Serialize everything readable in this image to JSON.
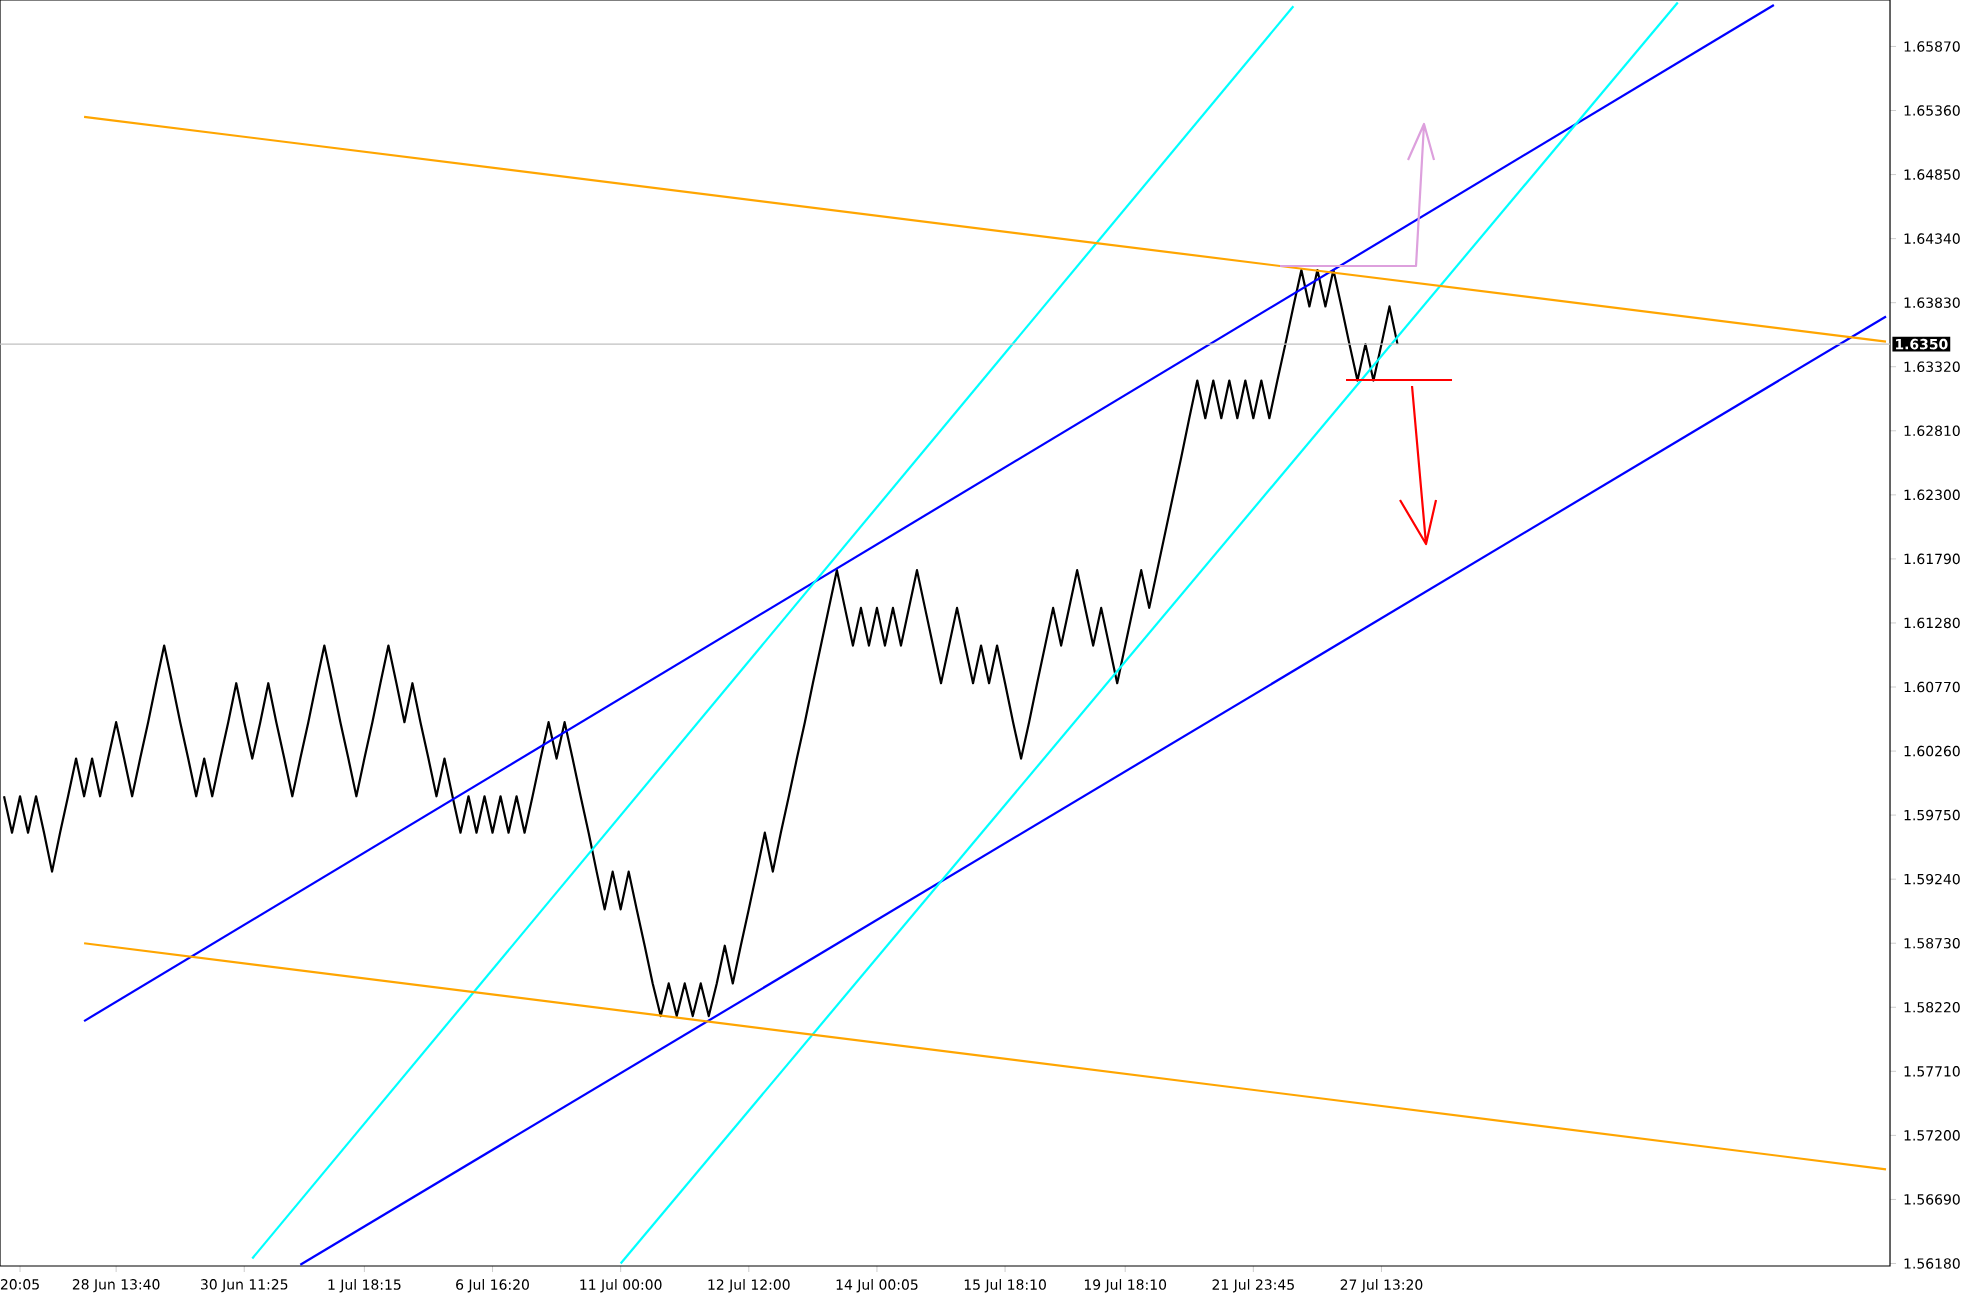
{
  "chart_data": {
    "type": "line",
    "categories": [
      null,
      null,
      "20:05",
      null,
      null,
      null,
      null,
      null,
      null,
      null,
      null,
      null,
      null,
      null,
      "28 Jun 13:40",
      null,
      null,
      null,
      null,
      null,
      null,
      null,
      null,
      null,
      null,
      null,
      null,
      null,
      null,
      null,
      "30 Jun 11:25",
      null,
      null,
      null,
      null,
      null,
      null,
      null,
      null,
      null,
      null,
      null,
      null,
      null,
      null,
      "1 Jul 18:15",
      null,
      null,
      null,
      null,
      null,
      null,
      null,
      null,
      null,
      null,
      null,
      null,
      null,
      null,
      null,
      "6 Jul 16:20",
      null,
      null,
      null,
      null,
      null,
      null,
      null,
      null,
      null,
      null,
      null,
      null,
      null,
      null,
      null,
      "11 Jul 00:00",
      null,
      null,
      null,
      null,
      null,
      null,
      null,
      null,
      null,
      null,
      null,
      null,
      null,
      null,
      null,
      "12 Jul 12:00",
      null,
      null,
      null,
      null,
      null,
      null,
      null,
      null,
      null,
      null,
      null,
      null,
      null,
      null,
      null,
      "14 Jul 00:05",
      null,
      null,
      null,
      null,
      null,
      null,
      null,
      null,
      null,
      null,
      null,
      null,
      null,
      null,
      null,
      "15 Jul 18:10",
      null,
      null,
      null,
      null,
      null,
      null,
      null,
      null,
      null,
      null,
      null,
      null,
      null,
      null,
      "19 Jul 18:10",
      null,
      null,
      null,
      null,
      null,
      null,
      null,
      null,
      null,
      null,
      null,
      null,
      null,
      null,
      null,
      "21 Jul 23:45",
      null,
      null,
      null,
      null,
      null,
      null,
      null,
      null,
      null,
      null,
      null,
      null,
      null,
      null,
      null,
      "27 Jul 13:20",
      null,
      null,
      null,
      null,
      null,
      null,
      null,
      null,
      null,
      null,
      null,
      null,
      null,
      null,
      null,
      null,
      null,
      null,
      null,
      null,
      null,
      null,
      null,
      null,
      null,
      null,
      null,
      null,
      null,
      null,
      null,
      null,
      null,
      null,
      null,
      null,
      null,
      null,
      null,
      null,
      null,
      null,
      null,
      null,
      null,
      null,
      null,
      null,
      null,
      null,
      null,
      null,
      null,
      null,
      null,
      null,
      null,
      null,
      null,
      null,
      null,
      null,
      null
    ],
    "ylim": [
      1.5616,
      1.6624
    ],
    "yticks": [
      {
        "value": 1.5618,
        "label": "1.56180"
      },
      {
        "value": 1.5669,
        "label": "1.56690"
      },
      {
        "value": 1.572,
        "label": "1.57200"
      },
      {
        "value": 1.5771,
        "label": "1.57710"
      },
      {
        "value": 1.5822,
        "label": "1.58220"
      },
      {
        "value": 1.5873,
        "label": "1.58730"
      },
      {
        "value": 1.5924,
        "label": "1.59240"
      },
      {
        "value": 1.5975,
        "label": "1.59750"
      },
      {
        "value": 1.6026,
        "label": "1.60260"
      },
      {
        "value": 1.6077,
        "label": "1.60770"
      },
      {
        "value": 1.6128,
        "label": "1.61280"
      },
      {
        "value": 1.6179,
        "label": "1.61790"
      },
      {
        "value": 1.623,
        "label": "1.62300"
      },
      {
        "value": 1.6281,
        "label": "1.62810"
      },
      {
        "value": 1.6332,
        "label": "1.63320"
      },
      {
        "value": 1.6383,
        "label": "1.63830"
      },
      {
        "value": 1.6434,
        "label": "1.64340"
      },
      {
        "value": 1.6485,
        "label": "1.64850"
      },
      {
        "value": 1.6536,
        "label": "1.65360"
      },
      {
        "value": 1.6587,
        "label": "1.65870"
      }
    ],
    "grid": false,
    "ref_lines": [
      {
        "axis": "y",
        "value": 1.635,
        "label": "1.6350",
        "color": "#c0c0c0"
      }
    ],
    "series": [
      {
        "color": "#000000",
        "values": [
          1.599,
          1.5961,
          1.599,
          1.5961,
          1.599,
          1.5961,
          1.593,
          1.5961,
          1.599,
          1.602,
          1.599,
          1.602,
          1.599,
          1.602,
          1.6049,
          1.602,
          1.599,
          1.602,
          1.6049,
          1.608,
          1.611,
          1.608,
          1.6049,
          1.602,
          1.599,
          1.602,
          1.599,
          1.602,
          1.6049,
          1.608,
          1.6049,
          1.602,
          1.6049,
          1.608,
          1.6049,
          1.602,
          1.599,
          1.602,
          1.6049,
          1.608,
          1.611,
          1.608,
          1.6049,
          1.602,
          1.599,
          1.602,
          1.6049,
          1.608,
          1.611,
          1.608,
          1.6049,
          1.608,
          1.6049,
          1.602,
          1.599,
          1.602,
          1.599,
          1.5961,
          1.599,
          1.5961,
          1.599,
          1.5961,
          1.599,
          1.5961,
          1.599,
          1.5961,
          1.599,
          1.602,
          1.6049,
          1.602,
          1.6049,
          1.602,
          1.599,
          1.5961,
          1.593,
          1.59,
          1.593,
          1.59,
          1.593,
          1.59,
          1.5871,
          1.5841,
          1.5815,
          1.5841,
          1.5815,
          1.5841,
          1.5815,
          1.5841,
          1.5815,
          1.5841,
          1.5871,
          1.5841,
          1.5871,
          1.59,
          1.593,
          1.5961,
          1.593,
          1.5961,
          1.599,
          1.602,
          1.6049,
          1.608,
          1.611,
          1.614,
          1.617,
          1.614,
          1.611,
          1.614,
          1.611,
          1.614,
          1.611,
          1.614,
          1.611,
          1.614,
          1.617,
          1.614,
          1.611,
          1.608,
          1.611,
          1.614,
          1.611,
          1.608,
          1.611,
          1.608,
          1.611,
          1.608,
          1.6049,
          1.602,
          1.6049,
          1.608,
          1.611,
          1.614,
          1.611,
          1.614,
          1.617,
          1.614,
          1.611,
          1.614,
          1.611,
          1.608,
          1.611,
          1.614,
          1.617,
          1.614,
          1.617,
          1.62,
          1.623,
          1.626,
          1.6291,
          1.6321,
          1.6291,
          1.6321,
          1.6291,
          1.6321,
          1.6291,
          1.6321,
          1.6291,
          1.6321,
          1.6291,
          1.6321,
          1.635,
          1.638,
          1.6409,
          1.638,
          1.6409,
          1.638,
          1.6409,
          1.638,
          1.635,
          1.6321,
          1.635,
          1.6321,
          1.635,
          1.638,
          1.635,
          null,
          null,
          null,
          null,
          null,
          null,
          null,
          null,
          null,
          null,
          null,
          null,
          null,
          null,
          null,
          null,
          null,
          null,
          null,
          null,
          null,
          null,
          null,
          null,
          null,
          null,
          null,
          null,
          null,
          null,
          null,
          null,
          null,
          null,
          null,
          null,
          null,
          null,
          null,
          null,
          null,
          null,
          null,
          null,
          null,
          null,
          null,
          null,
          null,
          null,
          null,
          null,
          null,
          null,
          null,
          null,
          null,
          null,
          null,
          null,
          null
        ]
      },
      {
        "color": "#0000ff",
        "values": [
          null,
          null,
          null,
          null,
          null,
          null,
          null,
          null,
          null,
          null,
          1.5811,
          null,
          null,
          null,
          null,
          null,
          null,
          null,
          null,
          null,
          null,
          null,
          null,
          null,
          null,
          null,
          null,
          null,
          null,
          null,
          null,
          null,
          null,
          null,
          null,
          null,
          null,
          null,
          null,
          null,
          null,
          null,
          null,
          null,
          null,
          null,
          null,
          null,
          null,
          null,
          null,
          null,
          null,
          null,
          null,
          null,
          null,
          null,
          null,
          null,
          null,
          null,
          null,
          null,
          null,
          null,
          null,
          null,
          null,
          null,
          null,
          null,
          null,
          null,
          null,
          null,
          null,
          null,
          null,
          null,
          null,
          null,
          null,
          null,
          null,
          null,
          null,
          null,
          null,
          null,
          null,
          null,
          null,
          null,
          null,
          null,
          null,
          null,
          null,
          null,
          null,
          null,
          null,
          null,
          null,
          null,
          null,
          null,
          null,
          null,
          null,
          null,
          null,
          null,
          null,
          null,
          null,
          null,
          null,
          null,
          null,
          null,
          null,
          null,
          null,
          null,
          null,
          null,
          null,
          null,
          null,
          null,
          null,
          null,
          null,
          null,
          null,
          null,
          null,
          null,
          null,
          null,
          null,
          null,
          null,
          null,
          null,
          null,
          null,
          null,
          null,
          null,
          null,
          null,
          null,
          null,
          null,
          null,
          null,
          null,
          null,
          null,
          null,
          null,
          null,
          null,
          null,
          null,
          null,
          null,
          null,
          null,
          null,
          null,
          null,
          null,
          null,
          null,
          null,
          null,
          null,
          null,
          null,
          null,
          null,
          null,
          null,
          null,
          null,
          null,
          null,
          null,
          null,
          null,
          null,
          null,
          null,
          null,
          null,
          null,
          null,
          null,
          null,
          null,
          null,
          null,
          null,
          null,
          null,
          null,
          null,
          null,
          null,
          null,
          null,
          null,
          null,
          null,
          null,
          null,
          null,
          1.662,
          null,
          null,
          null,
          null,
          null,
          null,
          null,
          null,
          null,
          null,
          null,
          null,
          null,
          null
        ]
      },
      {
        "color": "#0000ff",
        "values": [
          null,
          null,
          null,
          null,
          null,
          null,
          null,
          null,
          null,
          null,
          null,
          null,
          null,
          null,
          null,
          null,
          null,
          null,
          null,
          null,
          null,
          null,
          null,
          null,
          null,
          null,
          null,
          null,
          null,
          null,
          null,
          null,
          null,
          null,
          null,
          null,
          null,
          1.5617,
          null,
          null,
          null,
          null,
          null,
          null,
          null,
          null,
          null,
          null,
          null,
          null,
          null,
          null,
          null,
          null,
          null,
          null,
          null,
          null,
          null,
          null,
          null,
          null,
          null,
          null,
          null,
          null,
          null,
          null,
          null,
          null,
          null,
          null,
          null,
          null,
          null,
          null,
          null,
          null,
          null,
          null,
          null,
          null,
          null,
          null,
          null,
          null,
          null,
          null,
          null,
          null,
          null,
          null,
          null,
          null,
          null,
          null,
          null,
          null,
          null,
          null,
          null,
          null,
          null,
          null,
          null,
          null,
          null,
          null,
          null,
          null,
          null,
          null,
          null,
          null,
          null,
          null,
          null,
          null,
          null,
          null,
          null,
          null,
          null,
          null,
          null,
          null,
          null,
          null,
          null,
          null,
          null,
          null,
          null,
          null,
          null,
          null,
          null,
          null,
          null,
          null,
          null,
          null,
          null,
          null,
          null,
          null,
          null,
          null,
          null,
          null,
          null,
          null,
          null,
          null,
          null,
          null,
          null,
          null,
          null,
          null,
          null,
          null,
          null,
          null,
          null,
          null,
          null,
          null,
          null,
          null,
          null,
          null,
          null,
          null,
          null,
          null,
          null,
          null,
          null,
          null,
          null,
          null,
          null,
          null,
          null,
          null,
          null,
          null,
          null,
          null,
          null,
          null,
          null,
          null,
          null,
          null,
          null,
          null,
          null,
          null,
          null,
          null,
          null,
          null,
          null,
          null,
          null,
          null,
          null,
          null,
          null,
          null,
          null,
          null,
          null,
          null,
          null,
          null,
          null,
          null,
          null,
          null,
          null,
          null,
          null,
          null,
          null,
          null,
          null,
          null,
          null,
          null,
          null,
          null,
          null,
          1.6372
        ]
      },
      {
        "color": "#00ffff",
        "values": [
          null,
          null,
          null,
          null,
          null,
          null,
          null,
          null,
          null,
          null,
          null,
          null,
          null,
          null,
          null,
          null,
          null,
          null,
          null,
          null,
          null,
          null,
          null,
          null,
          null,
          null,
          null,
          null,
          null,
          null,
          null,
          1.5622,
          null,
          null,
          null,
          null,
          null,
          null,
          null,
          null,
          null,
          null,
          null,
          null,
          null,
          null,
          null,
          null,
          null,
          null,
          null,
          null,
          null,
          null,
          null,
          null,
          null,
          null,
          null,
          null,
          null,
          null,
          null,
          null,
          null,
          null,
          null,
          null,
          null,
          null,
          null,
          null,
          null,
          null,
          null,
          null,
          null,
          null,
          null,
          null,
          null,
          null,
          null,
          null,
          null,
          null,
          null,
          null,
          null,
          null,
          null,
          null,
          null,
          null,
          null,
          null,
          null,
          null,
          null,
          null,
          null,
          null,
          null,
          null,
          null,
          null,
          null,
          null,
          null,
          null,
          null,
          null,
          null,
          null,
          null,
          null,
          null,
          null,
          null,
          null,
          null,
          null,
          null,
          null,
          null,
          null,
          null,
          null,
          null,
          null,
          null,
          null,
          null,
          null,
          null,
          null,
          null,
          null,
          null,
          null,
          null,
          null,
          null,
          null,
          null,
          null,
          null,
          null,
          null,
          null,
          null,
          null,
          null,
          null,
          null,
          null,
          null,
          null,
          null,
          null,
          null,
          1.6619,
          null,
          null,
          null,
          null,
          null,
          null,
          null,
          null,
          null,
          null,
          null,
          null,
          null,
          null,
          null,
          null,
          null,
          null,
          null,
          null,
          null,
          null,
          null,
          null,
          null,
          null,
          null,
          null,
          null,
          null,
          null,
          null,
          null,
          null,
          null,
          null,
          null,
          null,
          null,
          null,
          null,
          null,
          null,
          null,
          null,
          null,
          null,
          null,
          null,
          null,
          null,
          null,
          null,
          null,
          null,
          null,
          null,
          null,
          null,
          null,
          null,
          null,
          null,
          null,
          null,
          null,
          null,
          null,
          null,
          null,
          null,
          null,
          null,
          null
        ]
      },
      {
        "color": "#00ffff",
        "values": [
          null,
          null,
          null,
          null,
          null,
          null,
          null,
          null,
          null,
          null,
          null,
          null,
          null,
          null,
          null,
          null,
          null,
          null,
          null,
          null,
          null,
          null,
          null,
          null,
          null,
          null,
          null,
          null,
          null,
          null,
          null,
          null,
          null,
          null,
          null,
          null,
          null,
          null,
          null,
          null,
          null,
          null,
          null,
          null,
          null,
          null,
          null,
          null,
          null,
          null,
          null,
          null,
          null,
          null,
          null,
          null,
          null,
          null,
          null,
          null,
          null,
          null,
          null,
          null,
          null,
          null,
          null,
          null,
          null,
          null,
          null,
          null,
          null,
          null,
          null,
          null,
          null,
          1.5618,
          null,
          null,
          null,
          null,
          null,
          null,
          null,
          null,
          null,
          null,
          null,
          null,
          null,
          null,
          null,
          null,
          null,
          null,
          null,
          null,
          null,
          null,
          null,
          null,
          null,
          null,
          null,
          null,
          null,
          null,
          null,
          null,
          null,
          null,
          null,
          null,
          null,
          null,
          null,
          null,
          null,
          null,
          null,
          null,
          null,
          null,
          null,
          null,
          null,
          null,
          null,
          null,
          null,
          null,
          null,
          null,
          null,
          null,
          null,
          null,
          null,
          null,
          null,
          null,
          null,
          null,
          null,
          null,
          null,
          null,
          null,
          null,
          null,
          null,
          null,
          null,
          null,
          null,
          null,
          null,
          null,
          null,
          null,
          null,
          null,
          null,
          null,
          null,
          null,
          null,
          null,
          null,
          null,
          null,
          null,
          null,
          null,
          null,
          null,
          null,
          null,
          null,
          null,
          null,
          null,
          null,
          null,
          null,
          null,
          null,
          null,
          null,
          null,
          null,
          null,
          null,
          null,
          null,
          null,
          null,
          null,
          null,
          null,
          null,
          null,
          null,
          null,
          null,
          null,
          null,
          null,
          1.6622,
          null,
          null,
          null,
          null,
          null,
          null,
          null,
          null,
          null,
          null,
          null,
          null,
          null,
          null,
          null,
          null,
          null,
          null,
          null,
          null,
          null,
          null,
          null,
          null,
          null,
          null
        ]
      },
      {
        "color": "#ffa500",
        "values": [
          null,
          null,
          null,
          null,
          null,
          null,
          null,
          null,
          null,
          null,
          1.6531,
          null,
          null,
          null,
          null,
          null,
          null,
          null,
          null,
          null,
          null,
          null,
          null,
          null,
          null,
          null,
          null,
          null,
          null,
          null,
          null,
          null,
          null,
          null,
          null,
          null,
          null,
          null,
          null,
          null,
          null,
          null,
          null,
          null,
          null,
          null,
          null,
          null,
          null,
          null,
          null,
          null,
          null,
          null,
          null,
          null,
          null,
          null,
          null,
          null,
          null,
          null,
          null,
          null,
          null,
          null,
          null,
          null,
          null,
          null,
          null,
          null,
          null,
          null,
          null,
          null,
          null,
          null,
          null,
          null,
          null,
          null,
          null,
          null,
          null,
          null,
          null,
          null,
          null,
          null,
          null,
          null,
          null,
          null,
          null,
          null,
          null,
          null,
          null,
          null,
          null,
          null,
          null,
          null,
          null,
          null,
          null,
          null,
          null,
          null,
          null,
          null,
          null,
          null,
          null,
          null,
          null,
          null,
          null,
          null,
          null,
          null,
          null,
          null,
          null,
          null,
          null,
          null,
          null,
          null,
          null,
          null,
          null,
          null,
          null,
          null,
          null,
          null,
          null,
          null,
          null,
          null,
          null,
          null,
          null,
          null,
          null,
          null,
          null,
          null,
          null,
          null,
          null,
          null,
          null,
          null,
          null,
          null,
          null,
          null,
          null,
          null,
          null,
          null,
          null,
          null,
          null,
          null,
          null,
          null,
          null,
          null,
          null,
          null,
          null,
          null,
          null,
          null,
          null,
          null,
          null,
          null,
          null,
          null,
          null,
          null,
          null,
          null,
          null,
          null,
          null,
          null,
          null,
          null,
          null,
          null,
          null,
          null,
          null,
          null,
          null,
          null,
          null,
          null,
          null,
          null,
          null,
          null,
          null,
          null,
          null,
          null,
          null,
          null,
          null,
          null,
          null,
          null,
          null,
          null,
          null,
          null,
          null,
          null,
          null,
          null,
          null,
          null,
          null,
          null,
          null,
          null,
          null,
          null,
          null,
          1.6352
        ]
      },
      {
        "color": "#ffa500",
        "values": [
          null,
          null,
          null,
          null,
          null,
          null,
          null,
          null,
          null,
          null,
          1.5873,
          null,
          null,
          null,
          null,
          null,
          null,
          null,
          null,
          null,
          null,
          null,
          null,
          null,
          null,
          null,
          null,
          null,
          null,
          null,
          null,
          null,
          null,
          null,
          null,
          null,
          null,
          null,
          null,
          null,
          null,
          null,
          null,
          null,
          null,
          null,
          null,
          null,
          null,
          null,
          null,
          null,
          null,
          null,
          null,
          null,
          null,
          null,
          null,
          null,
          null,
          null,
          null,
          null,
          null,
          null,
          null,
          null,
          null,
          null,
          null,
          null,
          null,
          null,
          null,
          null,
          null,
          null,
          null,
          null,
          null,
          null,
          null,
          null,
          null,
          null,
          null,
          null,
          null,
          null,
          null,
          null,
          null,
          null,
          null,
          null,
          null,
          null,
          null,
          null,
          null,
          null,
          null,
          null,
          null,
          null,
          null,
          null,
          null,
          null,
          null,
          null,
          null,
          null,
          null,
          null,
          null,
          null,
          null,
          null,
          null,
          null,
          null,
          null,
          null,
          null,
          null,
          null,
          null,
          null,
          null,
          null,
          null,
          null,
          null,
          null,
          null,
          null,
          null,
          null,
          null,
          null,
          null,
          null,
          null,
          null,
          null,
          null,
          null,
          null,
          null,
          null,
          null,
          null,
          null,
          null,
          null,
          null,
          null,
          null,
          null,
          null,
          null,
          null,
          null,
          null,
          null,
          null,
          null,
          null,
          null,
          null,
          null,
          null,
          null,
          null,
          null,
          null,
          null,
          null,
          null,
          null,
          null,
          null,
          null,
          null,
          null,
          null,
          null,
          null,
          null,
          null,
          null,
          null,
          null,
          null,
          null,
          null,
          null,
          null,
          null,
          null,
          null,
          null,
          null,
          null,
          null,
          null,
          null,
          null,
          null,
          null,
          null,
          null,
          null,
          null,
          null,
          null,
          null,
          null,
          null,
          null,
          null,
          null,
          null,
          null,
          null,
          null,
          null,
          null,
          null,
          null,
          null,
          null,
          null,
          1.5693
        ]
      }
    ]
  }
}
